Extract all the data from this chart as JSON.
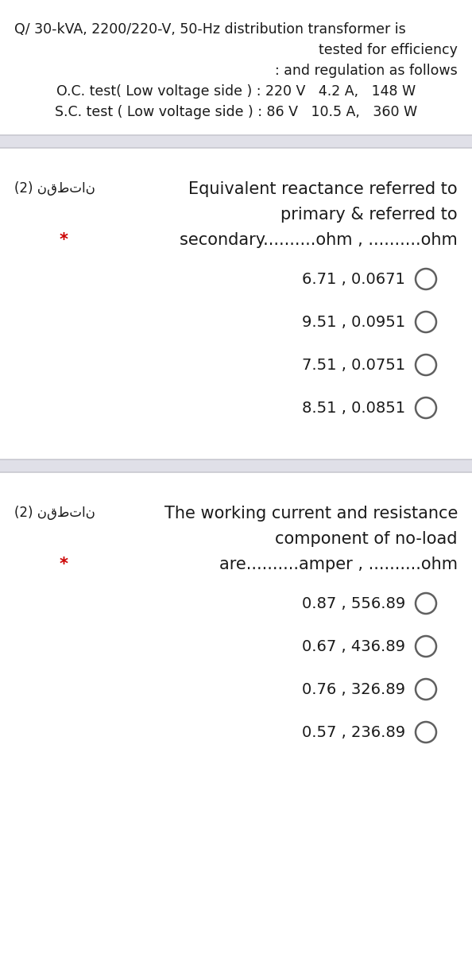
{
  "bg_color": "#ffffff",
  "section_divider_color": "#c8c8d0",
  "text_color": "#1a1a1a",
  "red_star_color": "#cc0000",
  "arabic_color": "#1a1a1a",
  "header_lines": [
    "Q/ 30-kVA, 2200/220-V, 50-Hz distribution transformer is",
    "tested for efficiency",
    ": and regulation as follows",
    "O.C. test( Low voltage side ) : 220 V   4.2 A,   148 W",
    "S.C. test ( Low voltage side ) : 86 V   10.5 A,   360 W"
  ],
  "section1_arabic": "(2) نقطتان",
  "section1_title_line1": "Equivalent reactance referred to",
  "section1_title_line2": "primary & referred to",
  "section1_answer_text": "secondary..........ohm , ..........ohm",
  "section1_options": [
    "6.71 , 0.0671",
    "9.51 , 0.0951",
    "7.51 , 0.0751",
    "8.51 , 0.0851"
  ],
  "section2_arabic": "(2) نقطتان",
  "section2_title_line1": "The working current and resistance",
  "section2_title_line2": "component of no-load",
  "section2_answer_text": "are..........amper , ..........ohm",
  "section2_options": [
    "0.87 , 556.89",
    "0.67 , 436.89",
    "0.76 , 326.89",
    "0.57 , 236.89"
  ],
  "header_fontsize": 12.5,
  "section_title_fontsize": 15,
  "section_answer_fontsize": 15,
  "option_fontsize": 14,
  "arabic_fontsize": 12,
  "star_fontsize": 15
}
